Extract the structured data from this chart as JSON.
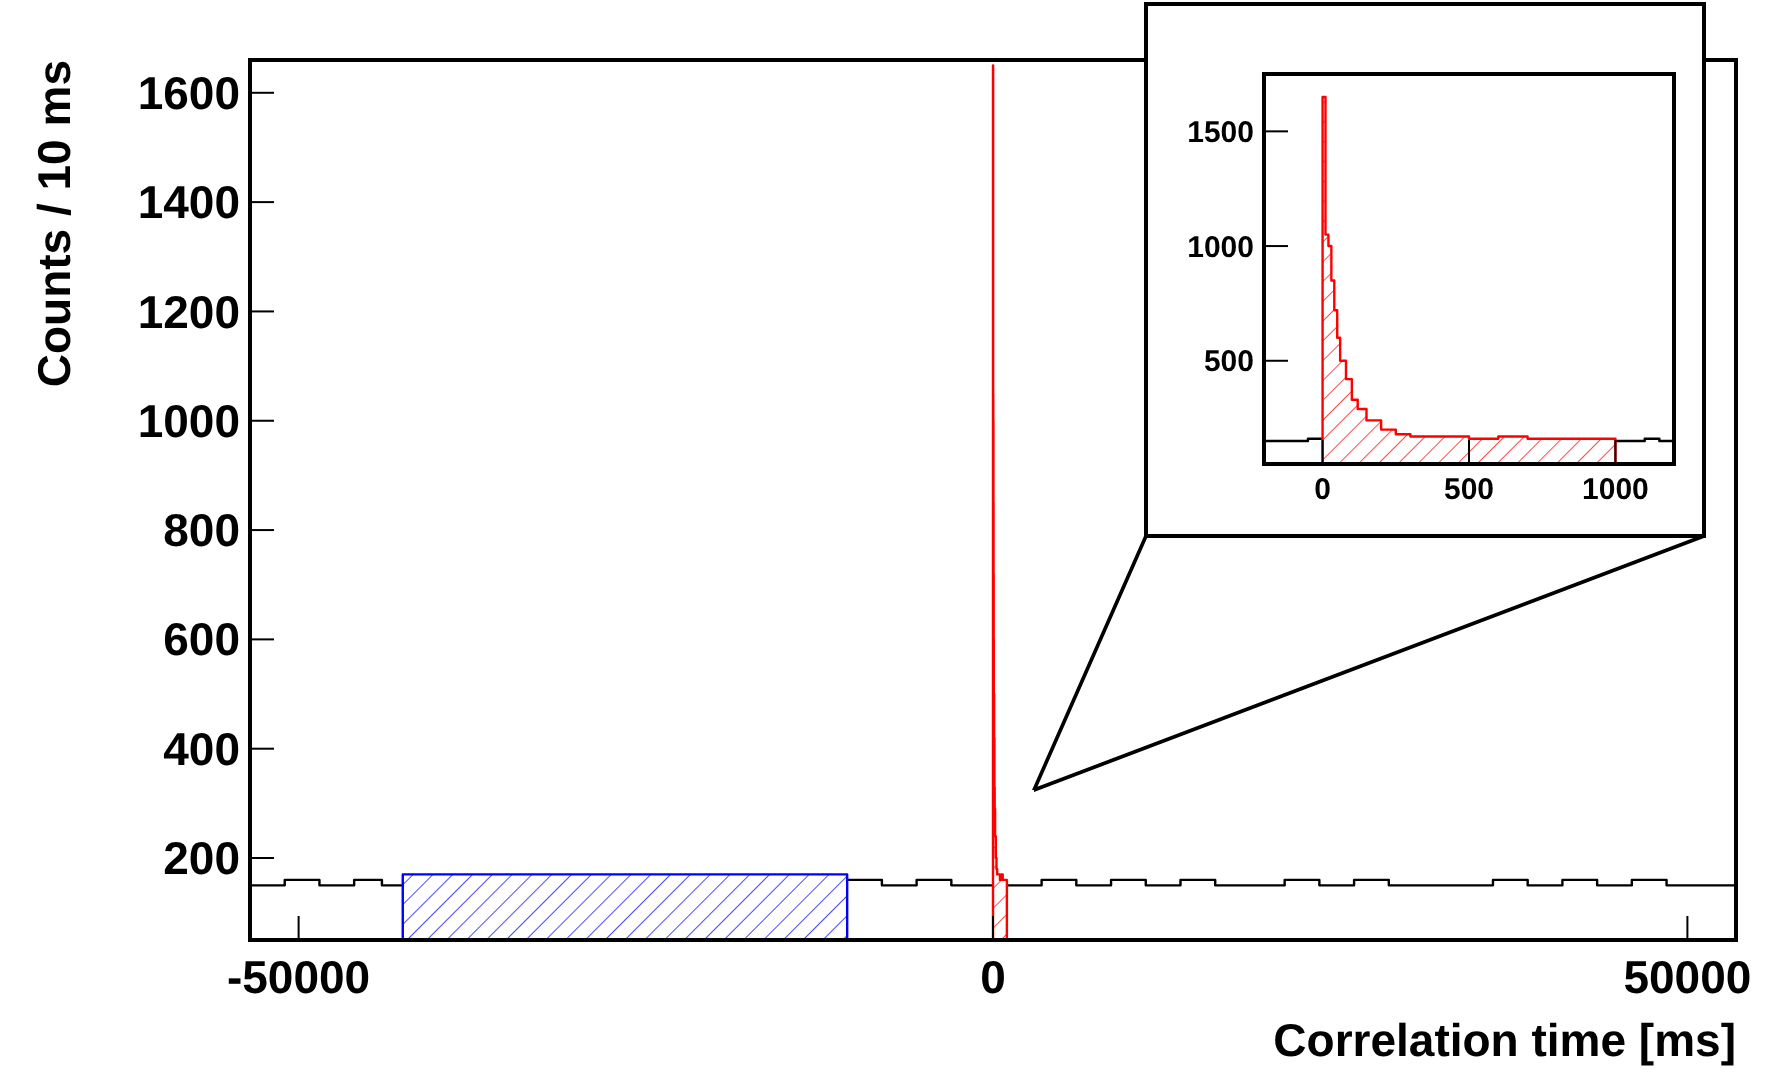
{
  "chart_data": [
    {
      "type": "step",
      "xlabel": "Correlation time [ms]",
      "ylabel": "Counts / 10 ms",
      "xlim": [
        -53500,
        53500
      ],
      "ylim": [
        50,
        1660
      ],
      "xticks": [
        -50000,
        0,
        50000
      ],
      "yticks": [
        200,
        400,
        600,
        800,
        1000,
        1200,
        1400,
        1600
      ],
      "series": [
        {
          "color": "#000000",
          "x": [
            -53500,
            -51000,
            -48500,
            -46000,
            -44000,
            -42500,
            -26500,
            -10500,
            -8000,
            -5500,
            -3000,
            -1000,
            0,
            500,
            1000,
            3500,
            6000,
            8500,
            11000,
            13500,
            16000,
            18500,
            21000,
            23500,
            26000,
            28500,
            31000,
            33500,
            36000,
            38500,
            41000,
            43500,
            46000,
            48500,
            51000,
            53500
          ],
          "values": [
            150,
            160,
            150,
            160,
            150,
            150,
            null,
            160,
            150,
            160,
            150,
            150,
            150,
            null,
            150,
            160,
            150,
            160,
            150,
            160,
            150,
            150,
            160,
            150,
            160,
            150,
            150,
            150,
            160,
            150,
            160,
            150,
            160,
            150,
            150,
            150
          ]
        },
        {
          "type": "area",
          "color": "#0000ff",
          "x": [
            -42500,
            -40500,
            -38500,
            -36500,
            -34500,
            -32500,
            -30500,
            -28500,
            -26500,
            -24500,
            -22500,
            -20500,
            -18500,
            -16500,
            -14500,
            -12500,
            -10500
          ],
          "values": [
            170,
            170,
            170,
            170,
            170,
            170,
            170,
            170,
            170,
            170,
            170,
            170,
            170,
            170,
            170,
            170,
            170
          ]
        },
        {
          "type": "area",
          "color": "#ff0000",
          "x": [
            0,
            10,
            20,
            30,
            40,
            50,
            60,
            80,
            100,
            120,
            150,
            200,
            250,
            300,
            400,
            500,
            600,
            700,
            800,
            900,
            1000
          ],
          "values": [
            1650,
            1050,
            1000,
            850,
            720,
            600,
            500,
            420,
            330,
            290,
            240,
            200,
            180,
            170,
            170,
            160,
            170,
            160,
            160,
            160,
            160
          ]
        }
      ]
    },
    {
      "type": "step",
      "xlim": [
        -200,
        1200
      ],
      "ylim": [
        50,
        1750
      ],
      "xticks": [
        0,
        500,
        1000
      ],
      "yticks": [
        500,
        1000,
        1500
      ],
      "series": [
        {
          "color": "#000000",
          "x": [
            -200,
            -150,
            -100,
            -50,
            0,
            500,
            1000,
            1050,
            1100,
            1150,
            1200
          ],
          "values": [
            150,
            150,
            150,
            160,
            160,
            null,
            150,
            150,
            160,
            150,
            150
          ]
        },
        {
          "type": "area",
          "color": "#ff0000",
          "x": [
            0,
            10,
            20,
            30,
            40,
            50,
            60,
            80,
            100,
            120,
            150,
            200,
            250,
            300,
            400,
            500,
            600,
            700,
            800,
            900,
            1000
          ],
          "values": [
            1650,
            1050,
            1000,
            850,
            720,
            600,
            500,
            420,
            330,
            290,
            240,
            200,
            180,
            170,
            170,
            160,
            170,
            160,
            160,
            160,
            160
          ]
        }
      ]
    }
  ]
}
